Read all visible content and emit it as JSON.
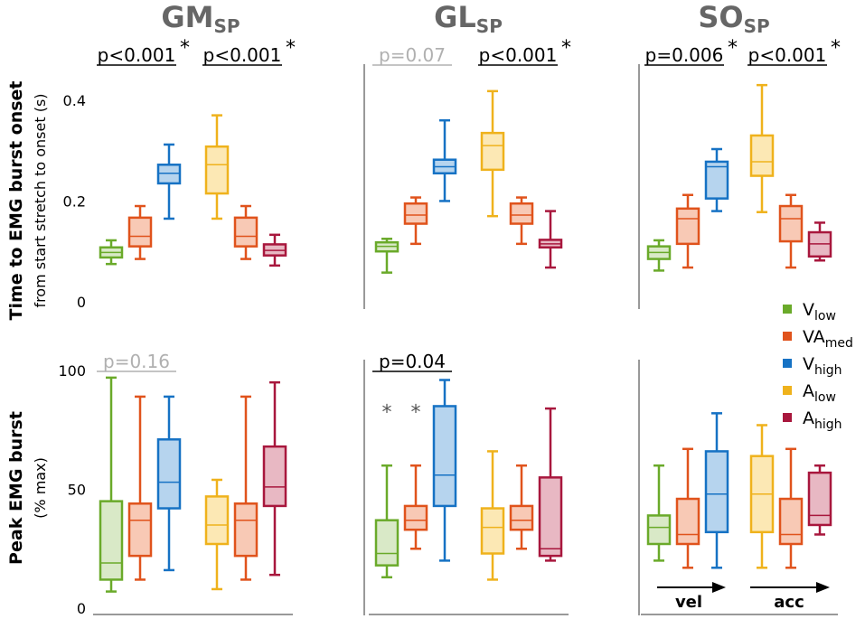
{
  "figure": {
    "columns": [
      {
        "main": "GM",
        "sub": "SP"
      },
      {
        "main": "GL",
        "sub": "SP"
      },
      {
        "main": "SO",
        "sub": "SP"
      }
    ],
    "rows": [
      {
        "title": "Time to EMG burst onset",
        "subtitle": "from start stretch to onset (s)"
      },
      {
        "title": "Peak EMG burst",
        "subtitle": "(% max)"
      }
    ],
    "legend": [
      {
        "main": "V",
        "sub": "low",
        "color": "#6aaa2a"
      },
      {
        "main": "VA",
        "sub": "med",
        "color": "#e0531c"
      },
      {
        "main": "V",
        "sub": "high",
        "color": "#1672c4"
      },
      {
        "main": "A",
        "sub": "low",
        "color": "#efb21c"
      },
      {
        "main": "A",
        "sub": "high",
        "color": "#a8173d"
      }
    ],
    "arrows": {
      "vel": "vel",
      "acc": "acc"
    },
    "outlier_mark": "*"
  },
  "chart_data": [
    {
      "type": "box",
      "row": 0,
      "col": 0,
      "muscle": "GM_SP",
      "ylim": [
        0,
        0.45
      ],
      "ticks": [
        {
          "value": 0,
          "label": "0"
        },
        {
          "value": 0.2,
          "label": "0.2"
        },
        {
          "value": 0.4,
          "label": "0.4"
        }
      ],
      "boxes": [
        {
          "group": "V_low",
          "min": 0.075,
          "q1": 0.088,
          "median": 0.098,
          "q3": 0.108,
          "max": 0.122
        },
        {
          "group": "VA_med",
          "min": 0.085,
          "q1": 0.11,
          "median": 0.13,
          "q3": 0.167,
          "max": 0.19
        },
        {
          "group": "V_high",
          "min": 0.165,
          "q1": 0.235,
          "median": 0.255,
          "q3": 0.272,
          "max": 0.312
        },
        {
          "group": "A_low",
          "min": 0.165,
          "q1": 0.215,
          "median": 0.272,
          "q3": 0.308,
          "max": 0.37
        },
        {
          "group": "VA_med",
          "min": 0.085,
          "q1": 0.11,
          "median": 0.13,
          "q3": 0.167,
          "max": 0.19
        },
        {
          "group": "A_high",
          "min": 0.072,
          "q1": 0.092,
          "median": 0.102,
          "q3": 0.114,
          "max": 0.133
        }
      ],
      "annotations": [
        {
          "text": "p<0.001",
          "star": "*",
          "significant": true,
          "from": 0,
          "to": 2
        },
        {
          "text": "p<0.001",
          "star": "*",
          "significant": true,
          "from": 3,
          "to": 5
        }
      ]
    },
    {
      "type": "box",
      "row": 0,
      "col": 1,
      "muscle": "GL_SP",
      "ylim": [
        0,
        0.45
      ],
      "ticks": [],
      "boxes": [
        {
          "group": "V_low",
          "min": 0.058,
          "q1": 0.1,
          "median": 0.11,
          "q3": 0.118,
          "max": 0.125
        },
        {
          "group": "VA_med",
          "min": 0.115,
          "q1": 0.155,
          "median": 0.172,
          "q3": 0.195,
          "max": 0.207
        },
        {
          "group": "V_high",
          "min": 0.2,
          "q1": 0.255,
          "median": 0.268,
          "q3": 0.282,
          "max": 0.36
        },
        {
          "group": "A_low",
          "min": 0.17,
          "q1": 0.262,
          "median": 0.31,
          "q3": 0.335,
          "max": 0.418
        },
        {
          "group": "VA_med",
          "min": 0.115,
          "q1": 0.155,
          "median": 0.172,
          "q3": 0.195,
          "max": 0.207
        },
        {
          "group": "A_high",
          "min": 0.068,
          "q1": 0.108,
          "median": 0.115,
          "q3": 0.123,
          "max": 0.18
        }
      ],
      "annotations": [
        {
          "text": "p=0.07",
          "star": "",
          "significant": false,
          "from": 0,
          "to": 2
        },
        {
          "text": "p<0.001",
          "star": "*",
          "significant": true,
          "from": 3,
          "to": 5
        }
      ]
    },
    {
      "type": "box",
      "row": 0,
      "col": 2,
      "muscle": "SO_SP",
      "ylim": [
        0,
        0.45
      ],
      "ticks": [],
      "boxes": [
        {
          "group": "V_low",
          "min": 0.062,
          "q1": 0.085,
          "median": 0.098,
          "q3": 0.11,
          "max": 0.122
        },
        {
          "group": "VA_med",
          "min": 0.068,
          "q1": 0.115,
          "median": 0.165,
          "q3": 0.185,
          "max": 0.212
        },
        {
          "group": "V_high",
          "min": 0.18,
          "q1": 0.205,
          "median": 0.268,
          "q3": 0.278,
          "max": 0.303
        },
        {
          "group": "A_low",
          "min": 0.178,
          "q1": 0.25,
          "median": 0.278,
          "q3": 0.33,
          "max": 0.43
        },
        {
          "group": "VA_med",
          "min": 0.068,
          "q1": 0.12,
          "median": 0.165,
          "q3": 0.19,
          "max": 0.212
        },
        {
          "group": "A_high",
          "min": 0.082,
          "q1": 0.09,
          "median": 0.115,
          "q3": 0.138,
          "max": 0.157
        }
      ],
      "annotations": [
        {
          "text": "p=0.006",
          "star": "*",
          "significant": true,
          "from": 0,
          "to": 2
        },
        {
          "text": "p<0.001",
          "star": "*",
          "significant": true,
          "from": 3,
          "to": 5
        }
      ]
    },
    {
      "type": "box",
      "row": 1,
      "col": 0,
      "muscle": "GM_SP",
      "ylim": [
        0,
        100
      ],
      "ticks": [
        {
          "value": 0,
          "label": "0"
        },
        {
          "value": 50,
          "label": "50"
        },
        {
          "value": 100,
          "label": "100"
        }
      ],
      "boxes": [
        {
          "group": "V_low",
          "min": 7,
          "q1": 12,
          "median": 19,
          "q3": 45,
          "max": 97
        },
        {
          "group": "VA_med",
          "min": 12,
          "q1": 22,
          "median": 37,
          "q3": 44,
          "max": 89
        },
        {
          "group": "V_high",
          "min": 16,
          "q1": 42,
          "median": 53,
          "q3": 71,
          "max": 89
        },
        {
          "group": "A_low",
          "min": 8,
          "q1": 27,
          "median": 35,
          "q3": 47,
          "max": 54
        },
        {
          "group": "VA_med",
          "min": 12,
          "q1": 22,
          "median": 37,
          "q3": 44,
          "max": 89
        },
        {
          "group": "A_high",
          "min": 14,
          "q1": 43,
          "median": 51,
          "q3": 68,
          "max": 95
        }
      ],
      "annotations": [
        {
          "text": "p=0.16",
          "star": "",
          "significant": false,
          "from": 0,
          "to": 2
        }
      ]
    },
    {
      "type": "box",
      "row": 1,
      "col": 1,
      "muscle": "GL_SP",
      "ylim": [
        0,
        100
      ],
      "ticks": [],
      "boxes": [
        {
          "group": "V_low",
          "min": 13,
          "q1": 18,
          "median": 23,
          "q3": 37,
          "max": 60,
          "outlier": 85
        },
        {
          "group": "VA_med",
          "min": 25,
          "q1": 33,
          "median": 37,
          "q3": 43,
          "max": 60,
          "outlier": 85
        },
        {
          "group": "V_high",
          "min": 20,
          "q1": 43,
          "median": 56,
          "q3": 85,
          "max": 96
        },
        {
          "group": "A_low",
          "min": 12,
          "q1": 23,
          "median": 34,
          "q3": 42,
          "max": 66
        },
        {
          "group": "VA_med",
          "min": 25,
          "q1": 33,
          "median": 37,
          "q3": 43,
          "max": 60
        },
        {
          "group": "A_high",
          "min": 20,
          "q1": 22,
          "median": 25,
          "q3": 55,
          "max": 84
        }
      ],
      "annotations": [
        {
          "text": "p=0.04",
          "star": "",
          "significant": true,
          "from": 0,
          "to": 2
        }
      ]
    },
    {
      "type": "box",
      "row": 1,
      "col": 2,
      "muscle": "SO_SP",
      "ylim": [
        0,
        100
      ],
      "ticks": [],
      "boxes": [
        {
          "group": "V_low",
          "min": 20,
          "q1": 27,
          "median": 34,
          "q3": 39,
          "max": 60
        },
        {
          "group": "VA_med",
          "min": 17,
          "q1": 27,
          "median": 31,
          "q3": 46,
          "max": 67
        },
        {
          "group": "V_high",
          "min": 17,
          "q1": 32,
          "median": 48,
          "q3": 66,
          "max": 82
        },
        {
          "group": "A_low",
          "min": 17,
          "q1": 32,
          "median": 48,
          "q3": 64,
          "max": 77
        },
        {
          "group": "VA_med",
          "min": 17,
          "q1": 27,
          "median": 31,
          "q3": 46,
          "max": 67
        },
        {
          "group": "A_high",
          "min": 31,
          "q1": 35,
          "median": 39,
          "q3": 57,
          "max": 60
        }
      ],
      "annotations": []
    }
  ]
}
